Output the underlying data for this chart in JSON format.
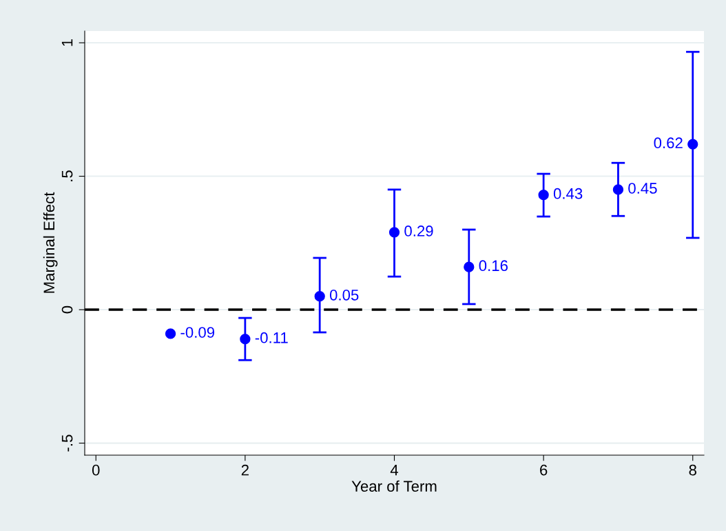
{
  "chart_data": {
    "type": "scatter",
    "xlabel": "Year of Term",
    "ylabel": "Marginal Effect",
    "x": [
      1,
      2,
      3,
      4,
      5,
      6,
      7,
      8
    ],
    "series": [
      {
        "color": "#0000ff",
        "values": [
          -0.09,
          -0.11,
          0.05,
          0.29,
          0.16,
          0.43,
          0.45,
          0.62
        ],
        "errors": [
          null,
          [
            -0.189,
            -0.031
          ],
          [
            -0.085,
            0.194
          ],
          [
            0.124,
            0.45
          ],
          [
            0.021,
            0.3
          ],
          [
            0.349,
            0.509
          ],
          [
            0.351,
            0.55
          ],
          [
            0.269,
            0.966
          ]
        ]
      }
    ],
    "data_labels": true,
    "marker": "circle",
    "xlim": [
      -0.15,
      8.15
    ],
    "xticks": [
      0,
      2,
      4,
      6,
      8
    ],
    "ylim": [
      -0.545,
      1.044
    ],
    "yticks": [
      {
        "value": -0.5,
        "label": "-.5"
      },
      0,
      {
        "value": 0.5,
        "label": ".5"
      },
      1
    ],
    "grid": "y",
    "ref_lines": [
      {
        "axis": "y",
        "value": 0,
        "color": "#000000",
        "line_style": "dashed"
      }
    ]
  }
}
